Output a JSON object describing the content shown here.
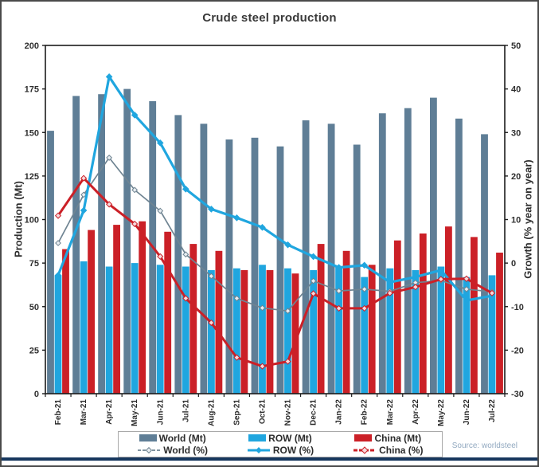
{
  "header": {
    "title": "Crude steel production"
  },
  "source_label": "Source: worldsteel",
  "legend": {
    "world_mt": "World (Mt)",
    "row_mt": "ROW (Mt)",
    "china_mt": "China (Mt)",
    "world_pct": "World (%)",
    "row_pct": "ROW (%)",
    "china_pct": "China (%)"
  },
  "colors": {
    "world_bar": "#5f7e96",
    "row_bar": "#20a6df",
    "china_bar": "#cb2027",
    "world_line": "#6f8492",
    "row_line": "#20a6df",
    "china_line": "#cb2027",
    "axis": "#1c1c1c",
    "tick_text": "#2e2e2e",
    "bottom_accent": "#17375e"
  },
  "chart_data": {
    "type": "bar+line",
    "title": "Crude steel production",
    "grid": false,
    "legend_position": "bottom",
    "categories": [
      "Feb-21",
      "Mar-21",
      "Apr-21",
      "May-21",
      "Jun-21",
      "Jul-21",
      "Aug-21",
      "Sep-21",
      "Oct-21",
      "Nov-21",
      "Dec-21",
      "Jan-22",
      "Feb-22",
      "Mar-22",
      "Apr-22",
      "May-22",
      "Jun-22",
      "Jul-22"
    ],
    "left_axis": {
      "label": "Production (Mt)",
      "min": 0,
      "max": 200,
      "step": 25
    },
    "right_axis": {
      "label": "Growth (% year on year)",
      "min": -30,
      "max": 50,
      "step": 10
    },
    "bar_series": [
      {
        "name": "World (Mt)",
        "axis": "left",
        "color": "#5f7e96",
        "values": [
          151,
          171,
          172,
          175,
          168,
          160,
          155,
          146,
          147,
          142,
          157,
          155,
          143,
          161,
          164,
          170,
          158,
          149
        ]
      },
      {
        "name": "ROW (Mt)",
        "axis": "left",
        "color": "#20a6df",
        "values": [
          68,
          76,
          73,
          75,
          74,
          73,
          71,
          72,
          74,
          72,
          71,
          73,
          67,
          72,
          71,
          73,
          67,
          68
        ]
      },
      {
        "name": "China (Mt)",
        "axis": "left",
        "color": "#cb2027",
        "values": [
          83,
          94,
          97,
          99,
          93,
          86,
          82,
          71,
          71,
          69,
          86,
          82,
          74,
          88,
          92,
          96,
          90,
          81
        ]
      }
    ],
    "line_series": [
      {
        "name": "World (%)",
        "axis": "right",
        "color": "#6f8492",
        "width": 1.7,
        "marker_fill": "#e9eef2",
        "marker_r": 3.2,
        "values": [
          4.6,
          15.7,
          24.2,
          16.8,
          12.0,
          2.0,
          -3.0,
          -8.1,
          -10.3,
          -11.0,
          -4.1,
          -6.4,
          -6.0,
          -6.5,
          -4.5,
          -4.0,
          -6.0,
          -6.6
        ]
      },
      {
        "name": "ROW (%)",
        "axis": "right",
        "color": "#20a6df",
        "width": 3.2,
        "marker_fill": "#20a6df",
        "marker_r": 3.6,
        "values": [
          -2.8,
          12.1,
          42.8,
          34.0,
          27.6,
          17.0,
          12.4,
          10.4,
          8.2,
          4.2,
          1.5,
          -1.0,
          -0.5,
          -4.4,
          -3.2,
          -1.6,
          -8.6,
          -7.5
        ]
      },
      {
        "name": "China (%)",
        "axis": "right",
        "color": "#cb2027",
        "width": 3.0,
        "marker_fill": "#f6dadd",
        "marker_r": 3.4,
        "values": [
          10.9,
          19.5,
          13.5,
          9.0,
          1.5,
          -8.1,
          -13.7,
          -21.7,
          -23.7,
          -22.6,
          -7.0,
          -10.4,
          -10.4,
          -6.9,
          -5.5,
          -3.7,
          -3.6,
          -6.9
        ]
      }
    ]
  }
}
